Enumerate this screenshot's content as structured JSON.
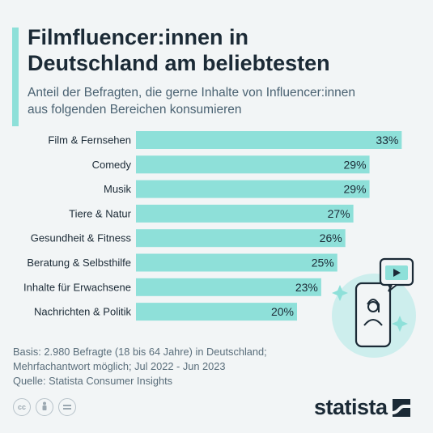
{
  "header": {
    "title_line1": "Filmfluencer:innen in",
    "title_line2": "Deutschland am beliebtesten",
    "subtitle_line1": "Anteil der Befragten, die gerne Inhalte von Influencer:innen",
    "subtitle_line2": "aus folgenden Bereichen konsumieren"
  },
  "chart_data": {
    "type": "bar",
    "orientation": "horizontal",
    "categories": [
      "Film & Fernsehen",
      "Comedy",
      "Musik",
      "Tiere & Natur",
      "Gesundheit & Fitness",
      "Beratung & Selbsthilfe",
      "Inhalte für Erwachsene",
      "Nachrichten & Politik"
    ],
    "values": [
      33,
      29,
      29,
      27,
      26,
      25,
      23,
      20
    ],
    "value_labels": [
      "33%",
      "29%",
      "29%",
      "27%",
      "26%",
      "25%",
      "23%",
      "20%"
    ],
    "unit": "%",
    "bar_color": "#8ee0d9",
    "grid": false
  },
  "footer": {
    "basis_line1": "Basis: 2.980 Befragte (18 bis 64 Jahre) in Deutschland;",
    "basis_line2": "Mehrfachantwort möglich; Jul 2022 - Jun 2023",
    "source": "Quelle: Statista Consumer Insights"
  },
  "license_icons": [
    "cc-icon",
    "by-icon",
    "nd-icon"
  ],
  "license_icon_text": {
    "cc": "cc"
  },
  "brand": {
    "name": "statista"
  },
  "colors": {
    "accent": "#8ee0d9",
    "title": "#1b2a36",
    "subtitle": "#4a6272",
    "background": "#f2f5f6"
  }
}
